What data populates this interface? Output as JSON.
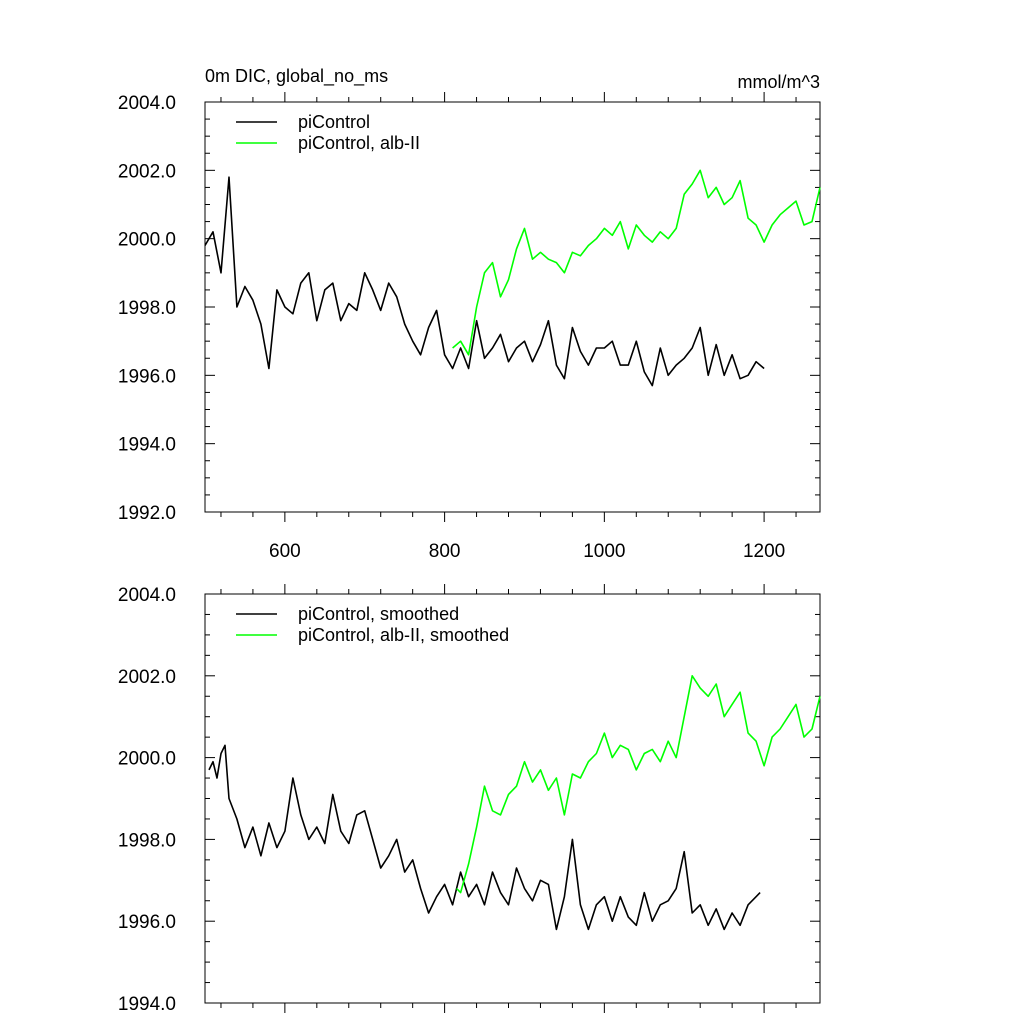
{
  "chart_data": [
    {
      "type": "line",
      "title_left": "0m DIC, global_no_ms",
      "title_right": "mmol/m^3",
      "xlim": [
        500,
        1270
      ],
      "ylim": [
        1992.0,
        2004.0
      ],
      "x_ticks": [
        600,
        800,
        1000,
        1200
      ],
      "x_tick_labels": [
        "600",
        "800",
        "1000",
        "1200"
      ],
      "y_ticks": [
        1992.0,
        1994.0,
        1996.0,
        1998.0,
        2000.0,
        2002.0,
        2004.0
      ],
      "y_tick_labels": [
        "1992.0",
        "1994.0",
        "1996.0",
        "1998.0",
        "2000.0",
        "2002.0",
        "2004.0"
      ],
      "legend": [
        "piControl",
        "piControl, alb-II"
      ],
      "series": [
        {
          "name": "piControl",
          "color": "#000000",
          "x": [
            500,
            510,
            520,
            530,
            540,
            550,
            560,
            570,
            580,
            590,
            600,
            610,
            620,
            630,
            640,
            650,
            660,
            670,
            680,
            690,
            700,
            710,
            720,
            730,
            740,
            750,
            760,
            770,
            780,
            790,
            800,
            810,
            820,
            830,
            840,
            850,
            860,
            870,
            880,
            890,
            900,
            910,
            920,
            930,
            940,
            950,
            960,
            970,
            980,
            990,
            1000,
            1010,
            1020,
            1030,
            1040,
            1050,
            1060,
            1070,
            1080,
            1090,
            1100,
            1110,
            1120,
            1130,
            1140,
            1150,
            1160,
            1170,
            1180,
            1190,
            1200
          ],
          "values": [
            1999.8,
            2000.2,
            1999.0,
            2001.8,
            1998.0,
            1998.6,
            1998.2,
            1997.5,
            1996.2,
            1998.5,
            1998.0,
            1997.8,
            1998.7,
            1999.0,
            1997.6,
            1998.5,
            1998.7,
            1997.6,
            1998.1,
            1997.9,
            1999.0,
            1998.5,
            1997.9,
            1998.7,
            1998.3,
            1997.5,
            1997.0,
            1996.6,
            1997.4,
            1997.9,
            1996.6,
            1996.2,
            1996.8,
            1996.2,
            1997.6,
            1996.5,
            1996.8,
            1997.2,
            1996.4,
            1996.8,
            1997.0,
            1996.4,
            1996.9,
            1997.6,
            1996.3,
            1995.9,
            1997.4,
            1996.7,
            1996.3,
            1996.8,
            1996.8,
            1997.0,
            1996.3,
            1996.3,
            1997.0,
            1996.1,
            1995.7,
            1996.8,
            1996.0,
            1996.3,
            1996.5,
            1996.8,
            1997.4,
            1996.0,
            1996.9,
            1996.0,
            1996.6,
            1995.9,
            1996.0,
            1996.4,
            1996.2
          ]
        },
        {
          "name": "piControl, alb-II",
          "color": "#00ff00",
          "x": [
            810,
            820,
            830,
            840,
            850,
            860,
            870,
            880,
            890,
            900,
            910,
            920,
            930,
            940,
            950,
            960,
            970,
            980,
            990,
            1000,
            1010,
            1020,
            1030,
            1040,
            1050,
            1060,
            1070,
            1080,
            1090,
            1100,
            1110,
            1120,
            1130,
            1140,
            1150,
            1160,
            1170,
            1180,
            1190,
            1200,
            1210,
            1220,
            1230,
            1240,
            1250,
            1260,
            1270
          ],
          "values": [
            1996.8,
            1997.0,
            1996.6,
            1998.0,
            1999.0,
            1999.3,
            1998.3,
            1998.8,
            1999.7,
            2000.3,
            1999.4,
            1999.6,
            1999.4,
            1999.3,
            1999.0,
            1999.6,
            1999.5,
            1999.8,
            2000.0,
            2000.3,
            2000.1,
            2000.5,
            1999.7,
            2000.4,
            2000.1,
            1999.9,
            2000.2,
            2000.0,
            2000.3,
            2001.3,
            2001.6,
            2002.0,
            2001.2,
            2001.5,
            2001.0,
            2001.2,
            2001.7,
            2000.6,
            2000.4,
            1999.9,
            2000.4,
            2000.7,
            2000.9,
            2001.1,
            2000.4,
            2000.5,
            2001.5
          ]
        }
      ]
    },
    {
      "type": "line",
      "xlim": [
        500,
        1270
      ],
      "ylim": [
        1994.0,
        2004.0
      ],
      "x_ticks": [
        600,
        800,
        1000,
        1200
      ],
      "y_ticks": [
        1994.0,
        1996.0,
        1998.0,
        2000.0,
        2002.0,
        2004.0
      ],
      "y_tick_labels": [
        "1994.0",
        "1996.0",
        "1998.0",
        "2000.0",
        "2002.0",
        "2004.0"
      ],
      "legend": [
        "piControl, smoothed",
        "piControl, alb-II, smoothed"
      ],
      "series": [
        {
          "name": "piControl, smoothed",
          "color": "#000000",
          "x": [
            505,
            510,
            515,
            520,
            525,
            530,
            540,
            550,
            560,
            570,
            580,
            590,
            600,
            610,
            620,
            630,
            640,
            650,
            660,
            670,
            680,
            690,
            700,
            710,
            720,
            730,
            740,
            750,
            760,
            770,
            780,
            790,
            800,
            810,
            820,
            830,
            840,
            850,
            860,
            870,
            880,
            890,
            900,
            910,
            920,
            930,
            940,
            950,
            960,
            970,
            980,
            990,
            1000,
            1010,
            1020,
            1030,
            1040,
            1050,
            1060,
            1070,
            1080,
            1090,
            1100,
            1110,
            1120,
            1130,
            1140,
            1150,
            1160,
            1170,
            1180,
            1190,
            1195
          ],
          "values": [
            1999.7,
            1999.9,
            1999.5,
            2000.1,
            2000.3,
            1999.0,
            1998.5,
            1997.8,
            1998.3,
            1997.6,
            1998.4,
            1997.8,
            1998.2,
            1999.5,
            1998.6,
            1998.0,
            1998.3,
            1997.9,
            1999.1,
            1998.2,
            1997.9,
            1998.6,
            1998.7,
            1998.0,
            1997.3,
            1997.6,
            1998.0,
            1997.2,
            1997.5,
            1996.8,
            1996.2,
            1996.6,
            1996.9,
            1996.4,
            1997.2,
            1996.6,
            1996.9,
            1996.4,
            1997.2,
            1996.7,
            1996.4,
            1997.3,
            1996.8,
            1996.5,
            1997.0,
            1996.9,
            1995.8,
            1996.6,
            1998.0,
            1996.4,
            1995.8,
            1996.4,
            1996.6,
            1996.0,
            1996.6,
            1996.1,
            1995.9,
            1996.7,
            1996.0,
            1996.4,
            1996.5,
            1996.8,
            1997.7,
            1996.2,
            1996.4,
            1995.9,
            1996.3,
            1995.8,
            1996.2,
            1995.9,
            1996.4,
            1996.6,
            1996.7
          ]
        },
        {
          "name": "piControl, alb-II, smoothed",
          "color": "#00ff00",
          "x": [
            815,
            820,
            830,
            840,
            850,
            860,
            870,
            880,
            890,
            900,
            910,
            920,
            930,
            940,
            950,
            960,
            970,
            980,
            990,
            1000,
            1010,
            1020,
            1030,
            1040,
            1050,
            1060,
            1070,
            1080,
            1090,
            1100,
            1110,
            1120,
            1130,
            1140,
            1150,
            1160,
            1170,
            1180,
            1190,
            1200,
            1210,
            1220,
            1230,
            1240,
            1250,
            1260,
            1270
          ],
          "values": [
            1996.8,
            1996.7,
            1997.4,
            1998.3,
            1999.3,
            1998.7,
            1998.6,
            1999.1,
            1999.3,
            1999.9,
            1999.4,
            1999.7,
            1999.2,
            1999.5,
            1998.6,
            1999.6,
            1999.5,
            1999.9,
            2000.1,
            2000.6,
            2000.0,
            2000.3,
            2000.2,
            1999.7,
            2000.1,
            2000.2,
            1999.9,
            2000.4,
            2000.0,
            2001.0,
            2002.0,
            2001.7,
            2001.5,
            2001.8,
            2001.0,
            2001.3,
            2001.6,
            2000.6,
            2000.4,
            1999.8,
            2000.5,
            2000.7,
            2001.0,
            2001.3,
            2000.5,
            2000.7,
            2001.5
          ]
        }
      ]
    }
  ]
}
